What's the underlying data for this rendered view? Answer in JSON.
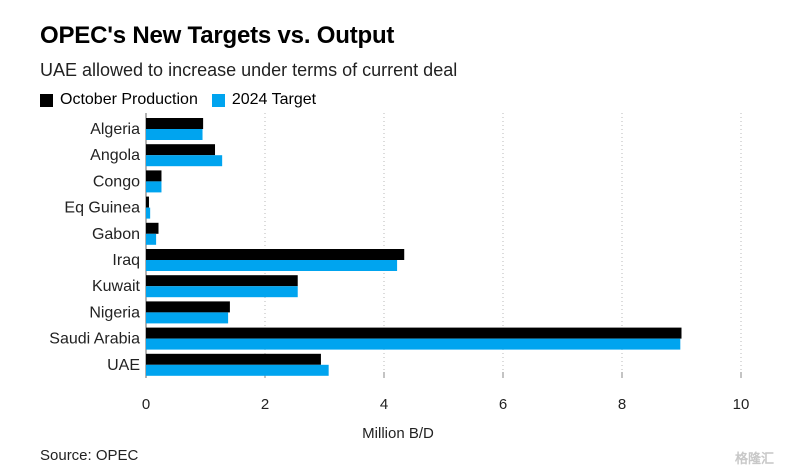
{
  "chart_data": {
    "type": "bar",
    "orientation": "horizontal",
    "title": "OPEC's New Targets vs. Output",
    "subtitle": "UAE allowed to increase under terms of current deal",
    "xlabel": "Million B/D",
    "ylabel": "",
    "xlim": [
      0,
      10
    ],
    "xticks": [
      0,
      2,
      4,
      6,
      8,
      10
    ],
    "grid": "vertical",
    "legend_position": "top-left",
    "categories": [
      "Algeria",
      "Angola",
      "Congo",
      "Eq Guinea",
      "Gabon",
      "Iraq",
      "Kuwait",
      "Nigeria",
      "Saudi Arabia",
      "UAE"
    ],
    "series": [
      {
        "name": "October Production",
        "color": "#000000",
        "values": [
          0.96,
          1.16,
          0.26,
          0.05,
          0.21,
          4.34,
          2.55,
          1.41,
          9.0,
          2.94
        ]
      },
      {
        "name": "2024 Target",
        "color": "#00A4EF",
        "values": [
          0.95,
          1.28,
          0.26,
          0.07,
          0.17,
          4.22,
          2.55,
          1.38,
          8.98,
          3.07
        ]
      }
    ],
    "source": "Source: OPEC"
  },
  "watermark": "格隆汇"
}
